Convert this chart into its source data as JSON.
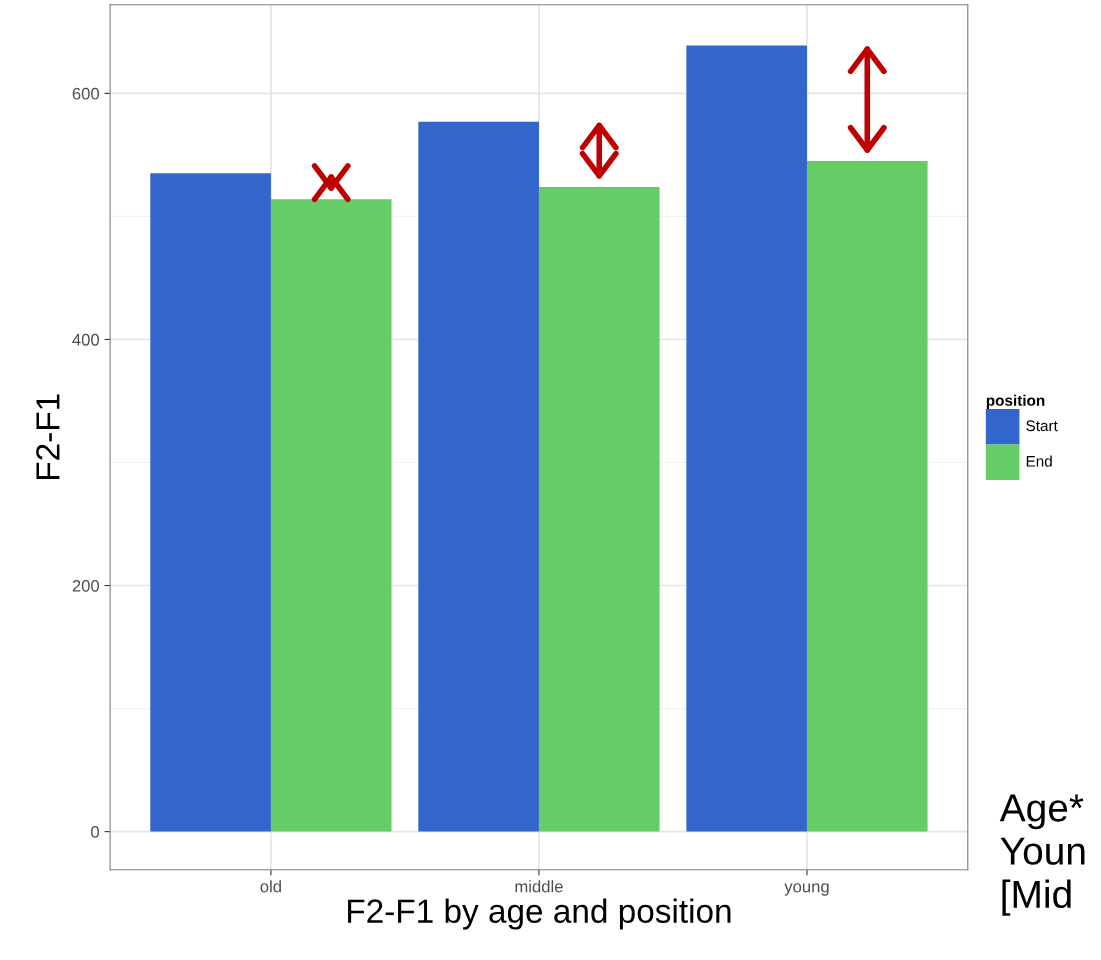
{
  "chart_data": {
    "type": "bar",
    "xlabel": "F2-F1 by age and position",
    "ylabel": "F2-F1",
    "legend_title": "position",
    "categories": [
      "old",
      "middle",
      "young"
    ],
    "series": [
      {
        "name": "Start",
        "color": "#3366cc",
        "values": [
          535,
          577,
          639
        ]
      },
      {
        "name": "End",
        "color": "#66cc66",
        "values": [
          514,
          524,
          545
        ]
      }
    ],
    "ylim": [
      -31,
      672
    ],
    "yticks": [
      0,
      200,
      400,
      600
    ],
    "grid": true,
    "legend": "right",
    "annotations": [
      "Age*",
      "Youn",
      "[Mid"
    ]
  }
}
